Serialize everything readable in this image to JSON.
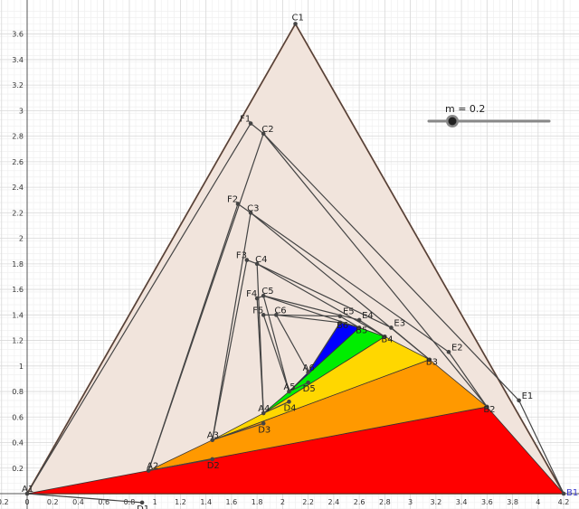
{
  "axes": {
    "x_range": [
      -0.2,
      4.25
    ],
    "y_range": [
      -0.12,
      3.78
    ],
    "x_ticks": [
      {
        "v": -0.2,
        "label": "-0.2"
      },
      {
        "v": 0,
        "label": "0"
      },
      {
        "v": 0.2,
        "label": "0.2"
      },
      {
        "v": 0.4,
        "label": "0.4"
      },
      {
        "v": 0.6,
        "label": "0.6"
      },
      {
        "v": 0.8,
        "label": "0.8"
      },
      {
        "v": 1,
        "label": "1"
      },
      {
        "v": 1.2,
        "label": "1.2"
      },
      {
        "v": 1.4,
        "label": "1.4"
      },
      {
        "v": 1.6,
        "label": "1.6"
      },
      {
        "v": 1.8,
        "label": "1.8"
      },
      {
        "v": 2,
        "label": "2"
      },
      {
        "v": 2.2,
        "label": "2.2"
      },
      {
        "v": 2.4,
        "label": "2.4"
      },
      {
        "v": 2.6,
        "label": "2.6"
      },
      {
        "v": 2.8,
        "label": "2.8"
      },
      {
        "v": 3,
        "label": "3"
      },
      {
        "v": 3.2,
        "label": "3.2"
      },
      {
        "v": 3.4,
        "label": "3.4"
      },
      {
        "v": 3.6,
        "label": "3.6"
      },
      {
        "v": 3.8,
        "label": "3.8"
      },
      {
        "v": 4,
        "label": "4"
      },
      {
        "v": 4.2,
        "label": "4.2"
      }
    ],
    "y_ticks": [
      {
        "v": 0.2,
        "label": "0.2"
      },
      {
        "v": 0.4,
        "label": "0.4"
      },
      {
        "v": 0.6,
        "label": "0.6"
      },
      {
        "v": 0.8,
        "label": "0.8"
      },
      {
        "v": 1,
        "label": "1"
      },
      {
        "v": 1.2,
        "label": "1.2"
      },
      {
        "v": 1.4,
        "label": "1.4"
      },
      {
        "v": 1.6,
        "label": "1.6"
      },
      {
        "v": 1.8,
        "label": "1.8"
      },
      {
        "v": 2,
        "label": "2"
      },
      {
        "v": 2.2,
        "label": "2.2"
      },
      {
        "v": 2.4,
        "label": "2.4"
      },
      {
        "v": 2.6,
        "label": "2.6"
      },
      {
        "v": 2.8,
        "label": "2.8"
      },
      {
        "v": 3,
        "label": "3"
      },
      {
        "v": 3.2,
        "label": "3.2"
      },
      {
        "v": 3.4,
        "label": "3.4"
      },
      {
        "v": 3.6,
        "label": "3.6"
      }
    ],
    "grid": true
  },
  "slider": {
    "label": "m = 0.2",
    "value": 0.2
  },
  "colors": {
    "triangle_fill": "#f1e4dc",
    "triangle_edge": "#a0522d",
    "line": "#444444",
    "red": "#ff0000",
    "orange": "#ff9900",
    "yellow": "#ffd700",
    "green": "#00ee00",
    "blue": "#0000ff"
  },
  "points": {
    "A1": [
      0,
      0
    ],
    "B1": [
      4.2,
      0
    ],
    "C1": [
      2.1,
      3.68
    ],
    "D1": [
      0.9,
      -0.07
    ],
    "E1": [
      3.85,
      0.73
    ],
    "F1": [
      1.75,
      2.9
    ],
    "A2": [
      0.95,
      0.18
    ],
    "B2": [
      3.6,
      0.68
    ],
    "C2": [
      1.85,
      2.82
    ],
    "D2": [
      1.45,
      0.27
    ],
    "E2": [
      3.3,
      1.11
    ],
    "F2": [
      1.65,
      2.27
    ],
    "A3": [
      1.45,
      0.42
    ],
    "B3": [
      3.15,
      1.05
    ],
    "C3": [
      1.75,
      2.2
    ],
    "D3": [
      1.85,
      0.55
    ],
    "E3": [
      2.85,
      1.3
    ],
    "F3": [
      1.72,
      1.83
    ],
    "A4": [
      1.85,
      0.63
    ],
    "B4": [
      2.8,
      1.23
    ],
    "C4": [
      1.8,
      1.8
    ],
    "D4": [
      2.05,
      0.72
    ],
    "E4": [
      2.6,
      1.36
    ],
    "F4": [
      1.8,
      1.53
    ],
    "A5": [
      2.05,
      0.8
    ],
    "B5": [
      2.6,
      1.3
    ],
    "C5": [
      1.85,
      1.55
    ],
    "D5": [
      2.2,
      0.87
    ],
    "E5": [
      2.45,
      1.39
    ],
    "F5": [
      1.85,
      1.4
    ],
    "A6": [
      2.2,
      0.95
    ],
    "B6": [
      2.45,
      1.34
    ],
    "C6": [
      1.95,
      1.4
    ]
  },
  "labels": [
    "A1",
    "B1",
    "C1",
    "D1",
    "E1",
    "F1",
    "A2",
    "B2",
    "C2",
    "D2",
    "E2",
    "F2",
    "A3",
    "B3",
    "C3",
    "D3",
    "E3",
    "F3",
    "A4",
    "B4",
    "C4",
    "D4",
    "E4",
    "F4",
    "A5",
    "B5",
    "C5",
    "D5",
    "E5",
    "F5",
    "A6",
    "B6",
    "C6"
  ]
}
